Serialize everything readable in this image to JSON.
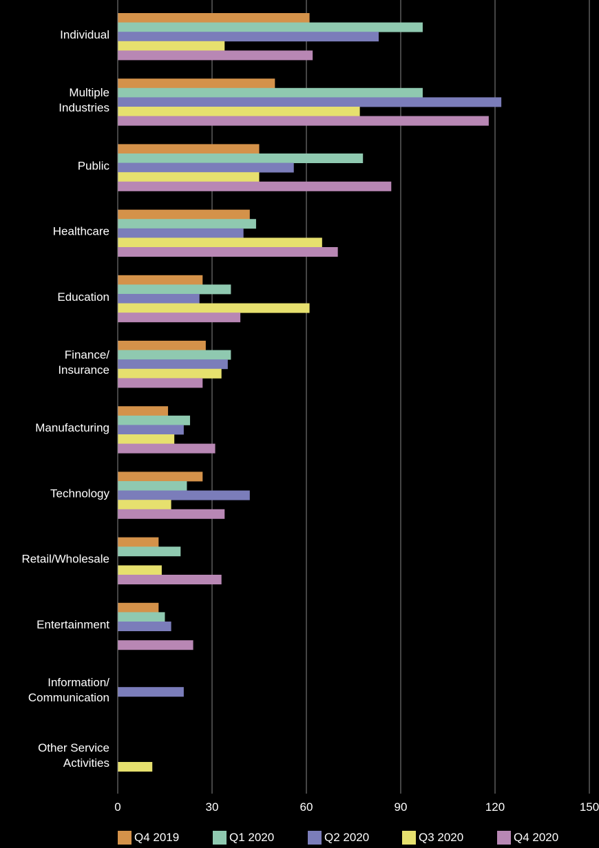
{
  "chart_data": {
    "type": "bar",
    "orientation": "horizontal",
    "title": "",
    "xlabel": "",
    "ylabel": "",
    "xlim": [
      0,
      150
    ],
    "x_ticks": [
      0,
      30,
      60,
      90,
      120,
      150
    ],
    "grid": "vertical",
    "legend_position": "bottom",
    "categories": [
      "Individual",
      "Multiple Industries",
      "Public",
      "Healthcare",
      "Education",
      "Finance/ Insurance",
      "Manufacturing",
      "Technology",
      "Retail/Wholesale",
      "Entertainment",
      "Information/ Communication",
      "Other Service Activities"
    ],
    "category_lines": [
      [
        "Individual"
      ],
      [
        "Multiple",
        "Industries"
      ],
      [
        "Public"
      ],
      [
        "Healthcare"
      ],
      [
        "Education"
      ],
      [
        "Finance/",
        "Insurance"
      ],
      [
        "Manufacturing"
      ],
      [
        "Technology"
      ],
      [
        "Retail/Wholesale"
      ],
      [
        "Entertainment"
      ],
      [
        "Information/",
        "Communication"
      ],
      [
        "Other Service",
        "Activities"
      ]
    ],
    "series": [
      {
        "name": "Q4 2019",
        "color": "#D4924A",
        "values": [
          61,
          50,
          45,
          42,
          27,
          28,
          16,
          27,
          13,
          13,
          0,
          0
        ]
      },
      {
        "name": "Q1 2020",
        "color": "#8FC9B0",
        "values": [
          97,
          97,
          78,
          44,
          36,
          36,
          23,
          22,
          20,
          15,
          0,
          0
        ]
      },
      {
        "name": "Q2 2020",
        "color": "#7B7DBA",
        "values": [
          83,
          122,
          56,
          40,
          26,
          35,
          21,
          42,
          0,
          17,
          21,
          0
        ]
      },
      {
        "name": "Q3 2020",
        "color": "#E6E06E",
        "values": [
          34,
          77,
          45,
          65,
          61,
          33,
          18,
          17,
          14,
          0,
          0,
          11
        ]
      },
      {
        "name": "Q4 2020",
        "color": "#B887B4",
        "values": [
          62,
          118,
          87,
          70,
          39,
          27,
          31,
          34,
          33,
          24,
          0,
          0
        ]
      }
    ]
  }
}
